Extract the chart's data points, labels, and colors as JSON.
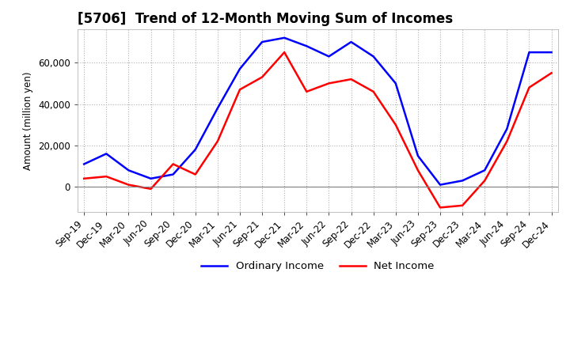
{
  "title": "[5706]  Trend of 12-Month Moving Sum of Incomes",
  "ylabel": "Amount (million yen)",
  "x_labels": [
    "Sep-19",
    "Dec-19",
    "Mar-20",
    "Jun-20",
    "Sep-20",
    "Dec-20",
    "Mar-21",
    "Jun-21",
    "Sep-21",
    "Dec-21",
    "Mar-22",
    "Jun-22",
    "Sep-22",
    "Dec-22",
    "Mar-23",
    "Jun-23",
    "Sep-23",
    "Dec-23",
    "Mar-24",
    "Jun-24",
    "Sep-24",
    "Dec-24"
  ],
  "ordinary_income": [
    11000,
    16000,
    8000,
    4000,
    6000,
    18000,
    38000,
    57000,
    70000,
    72000,
    68000,
    63000,
    70000,
    63000,
    50000,
    15000,
    1000,
    3000,
    8000,
    28000,
    65000,
    65000
  ],
  "net_income": [
    4000,
    5000,
    1000,
    -1000,
    11000,
    6000,
    22000,
    47000,
    53000,
    65000,
    46000,
    50000,
    52000,
    46000,
    30000,
    8000,
    -10000,
    -9000,
    3000,
    22000,
    48000,
    55000
  ],
  "ordinary_income_color": "#0000ff",
  "net_income_color": "#ff0000",
  "ylim_min": -12000,
  "ylim_max": 76000,
  "yticks": [
    0,
    20000,
    40000,
    60000
  ],
  "background_color": "#ffffff",
  "grid_color": "#b0b0b0",
  "title_fontsize": 12,
  "axis_fontsize": 8.5,
  "legend_fontsize": 9.5
}
